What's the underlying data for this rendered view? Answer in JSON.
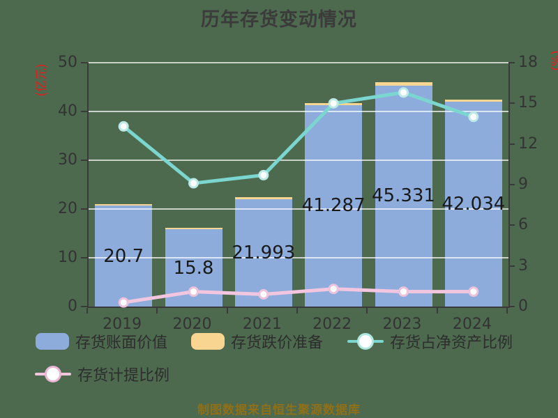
{
  "title": "历年存货变动情况",
  "footer": {
    "text": "制图数据来自恒生聚源数据库",
    "color": "#8f7019"
  },
  "axes": {
    "left": {
      "unit": "(亿元)",
      "unit_color": "#e81b1b",
      "ticks": [
        0,
        10,
        20,
        30,
        40,
        50
      ],
      "max": 50
    },
    "right": {
      "unit": "(%)",
      "unit_color": "#e81b1b",
      "ticks": [
        0,
        3,
        6,
        9,
        12,
        15,
        18
      ],
      "max": 18
    },
    "x": {
      "categories": [
        "2019",
        "2020",
        "2021",
        "2022",
        "2023",
        "2024"
      ]
    }
  },
  "legend": {
    "items": [
      {
        "label": "存货账面价值",
        "marker": "bar-swatch",
        "color": "#8dacdb"
      },
      {
        "label": "存货跌价准备",
        "marker": "bar-swatch",
        "color": "#f9d592"
      },
      {
        "label": "存货占净资产比例",
        "marker": "line-marker",
        "color": "#7bd6cf",
        "ring": "#aee6e1"
      },
      {
        "label": "存货计提比例",
        "marker": "line-marker",
        "color": "#f3c6df",
        "ring": "#eab6d5"
      }
    ]
  },
  "chart_data": {
    "type": "bar",
    "title": "历年存货变动情况",
    "categories": [
      "2019",
      "2020",
      "2021",
      "2022",
      "2023",
      "2024"
    ],
    "series": [
      {
        "name": "存货账面价值",
        "type": "bar",
        "axis": "left",
        "color": "#8dacdb",
        "values": [
          20.7,
          15.8,
          21.993,
          41.287,
          45.331,
          42.034
        ],
        "labels": [
          "20.7",
          "15.8",
          "21.993",
          "41.287",
          "45.331",
          "42.034"
        ]
      },
      {
        "name": "存货跌价准备",
        "type": "bar-stacked-cap",
        "axis": "left",
        "color": "#f9d592",
        "values": [
          0.3,
          0.35,
          0.43,
          0.45,
          0.7,
          0.45
        ]
      },
      {
        "name": "存货占净资产比例",
        "type": "line",
        "axis": "right",
        "color": "#7bd6cf",
        "marker_ring": "#bdeae6",
        "values": [
          13.3,
          9.1,
          9.7,
          15.0,
          15.8,
          14.0
        ]
      },
      {
        "name": "存货计提比例",
        "type": "line",
        "axis": "right",
        "color": "#f3c6df",
        "marker_ring": "#edc3dc",
        "values": [
          0.3,
          1.1,
          0.9,
          1.3,
          1.1,
          1.1
        ]
      }
    ],
    "ylim_left": [
      0,
      50
    ],
    "ylim_right": [
      0,
      18
    ],
    "grid": true,
    "legend_position": "bottom"
  }
}
